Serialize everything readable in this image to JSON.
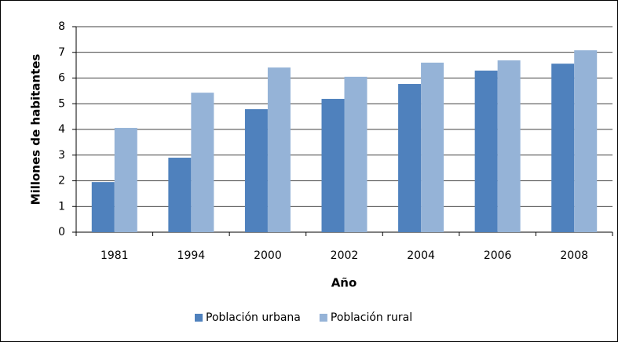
{
  "chart_data": {
    "type": "bar",
    "xlabel": "Año",
    "ylabel": "Millones de habitantes",
    "categories": [
      "1981",
      "1994",
      "2000",
      "2002",
      "2004",
      "2006",
      "2008"
    ],
    "series": [
      {
        "name": "Población urbana",
        "color": "#4f81bd",
        "values": [
          1.95,
          2.9,
          4.79,
          5.19,
          5.77,
          6.29,
          6.56
        ]
      },
      {
        "name": "Población rural",
        "color": "#95b3d7",
        "values": [
          4.06,
          5.43,
          6.41,
          6.05,
          6.6,
          6.69,
          7.08
        ]
      }
    ],
    "ylim": [
      0,
      8
    ],
    "yticks": [
      0,
      1,
      2,
      3,
      4,
      5,
      6,
      7,
      8
    ],
    "grid": true,
    "legend": "bottom"
  }
}
